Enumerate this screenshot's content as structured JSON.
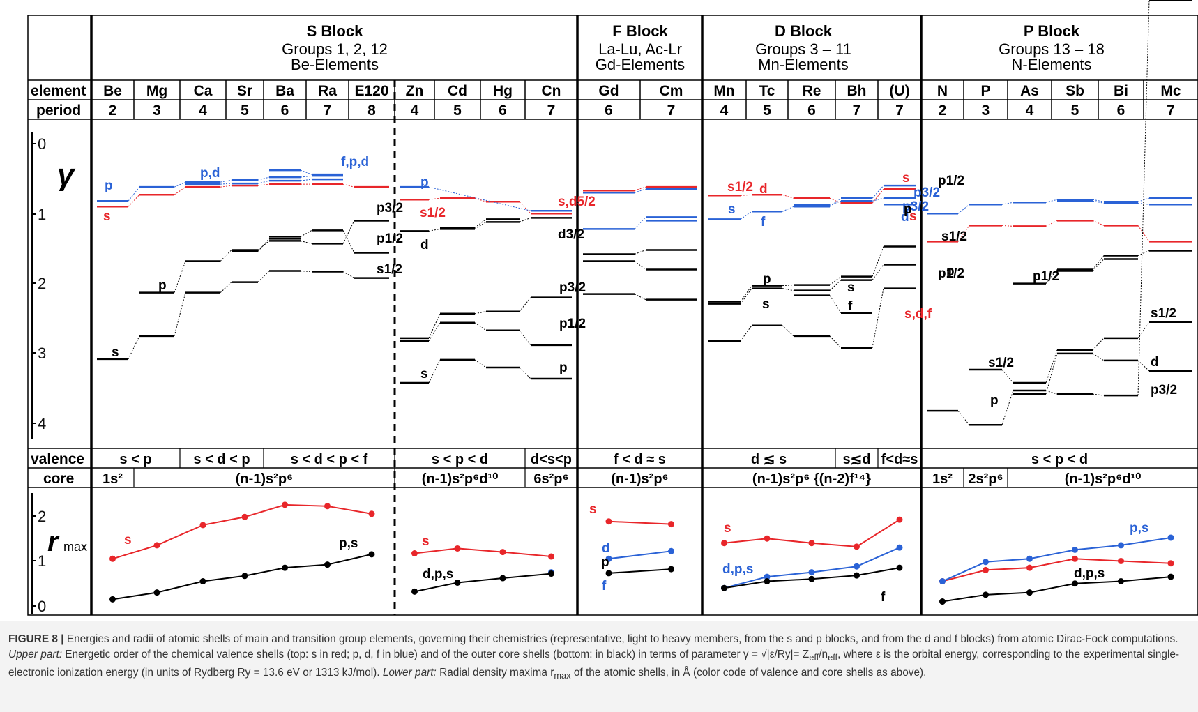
{
  "blocks": {
    "s": {
      "title": "S Block",
      "sub1": "Groups 1, 2, 12",
      "sub2": "Be-Elements"
    },
    "f": {
      "title": "F Block",
      "sub1": "La-Lu, Ac-Lr",
      "sub2": "Gd-Elements"
    },
    "d": {
      "title": "D Block",
      "sub1": "Groups 3 – 11",
      "sub2": "Mn-Elements"
    },
    "p": {
      "title": "P Block",
      "sub1": "Groups 13 – 18",
      "sub2": "N-Elements"
    }
  },
  "row_labels": {
    "element": "element",
    "period": "period",
    "valence": "valence",
    "core": "core"
  },
  "elements": [
    "Be",
    "Mg",
    "Ca",
    "Sr",
    "Ba",
    "Ra",
    "E120",
    "Zn",
    "Cd",
    "Hg",
    "Cn",
    "Gd",
    "Cm",
    "Mn",
    "Tc",
    "Re",
    "Bh",
    "(U)",
    "N",
    "P",
    "As",
    "Sb",
    "Bi",
    "Mc"
  ],
  "periods": [
    "2",
    "3",
    "4",
    "5",
    "6",
    "7",
    "8",
    "4",
    "5",
    "6",
    "7",
    "6",
    "7",
    "4",
    "5",
    "6",
    "7",
    "7",
    "2",
    "3",
    "4",
    "5",
    "6",
    "7"
  ],
  "valence_cells": [
    "s < p",
    "s < d < p",
    "s < d < p < f",
    "s < p < d",
    "d<s<p",
    "f < d ≈ s",
    "d ≲ s",
    "s≲d",
    "f<d≈s",
    "s < p < d"
  ],
  "core_cells": {
    "c1": "1s",
    "c1_sup": "2",
    "c2": "(n-1)s²p⁶",
    "c3": "(n-1)s²p⁶d¹⁰",
    "c4": "6s²p⁶",
    "c5": "(n-1)s²p⁶",
    "c6": "(n-1)s²p⁶ {(n-2)f¹⁴}",
    "c7": "1s²",
    "c8": "2s²p⁶",
    "c9": "(n-1)s²p⁶d¹⁰"
  },
  "gamma_axis": {
    "label": "γ",
    "ticks": [
      "0",
      "1",
      "2",
      "3",
      "4"
    ]
  },
  "rmax_axis": {
    "label": "r",
    "label_sub": "max",
    "ticks": [
      "2",
      "1",
      "0"
    ]
  },
  "shell_labels": [
    "p",
    "s",
    "p,d",
    "f,p,d",
    "p3/2",
    "p1/2",
    "s1/2",
    "p",
    "s",
    "p",
    "s1/2",
    "d",
    "s,d5/2",
    "d3/2",
    "p3/2",
    "p1/2",
    "p",
    "s",
    "s1/2",
    "s",
    "d",
    "f",
    "p",
    "s",
    "s",
    "d",
    "s,d,f",
    "p3/2",
    "p1/2",
    "s1/2",
    "p",
    "s",
    "f",
    "p",
    "s",
    "p3/2",
    "p1/2",
    "s1/2",
    "d",
    "p3/2",
    "p1/2",
    "s1/2",
    "p",
    "s"
  ],
  "rmax_labels": [
    "s",
    "p,s",
    "s",
    "d,p,s",
    "s",
    "d",
    "p",
    "f",
    "s",
    "d,p,s",
    "f",
    "p,s",
    "d,p,s"
  ],
  "colors": {
    "s": "#e8262a",
    "pdf": "#2a62d6",
    "core": "#000000"
  },
  "chart_data": {
    "type": "line",
    "title": "",
    "rmax": {
      "ylim": [
        0,
        2.3
      ],
      "series": [
        {
          "name": "s",
          "color": "#e8262a",
          "points": [
            [
              "Be",
              1.05
            ],
            [
              "Mg",
              1.35
            ],
            [
              "Ca",
              1.8
            ],
            [
              "Sr",
              1.98
            ],
            [
              "Ba",
              2.25
            ],
            [
              "Ra",
              2.22
            ],
            [
              "E120",
              2.05
            ],
            [
              "Zn",
              1.17
            ],
            [
              "Cd",
              1.28
            ],
            [
              "Hg",
              1.2
            ],
            [
              "Cn",
              1.1
            ],
            [
              "Gd",
              1.88
            ],
            [
              "Cm",
              1.82
            ],
            [
              "Mn",
              1.4
            ],
            [
              "Tc",
              1.5
            ],
            [
              "Re",
              1.4
            ],
            [
              "Bh",
              1.32
            ],
            [
              "(U)",
              1.92
            ],
            [
              "N",
              0.55
            ],
            [
              "P",
              0.8
            ],
            [
              "As",
              0.85
            ],
            [
              "Sb",
              1.05
            ],
            [
              "Bi",
              1.0
            ],
            [
              "Mc",
              0.95
            ]
          ]
        },
        {
          "name": "p,d,f valence",
          "color": "#2a62d6",
          "points": [
            [
              "Cn",
              0.75
            ],
            [
              "Gd",
              1.05
            ],
            [
              "Cm",
              1.22
            ],
            [
              "Mn",
              0.4
            ],
            [
              "Tc",
              0.65
            ],
            [
              "Re",
              0.75
            ],
            [
              "Bh",
              0.88
            ],
            [
              "(U)",
              1.3
            ],
            [
              "N",
              0.55
            ],
            [
              "P",
              0.98
            ],
            [
              "As",
              1.05
            ],
            [
              "Sb",
              1.25
            ],
            [
              "Bi",
              1.35
            ],
            [
              "Mc",
              1.52
            ]
          ]
        },
        {
          "name": "core",
          "color": "#000000",
          "points": [
            [
              "Be",
              0.15
            ],
            [
              "Mg",
              0.3
            ],
            [
              "Ca",
              0.55
            ],
            [
              "Sr",
              0.67
            ],
            [
              "Ba",
              0.85
            ],
            [
              "Ra",
              0.92
            ],
            [
              "E120",
              1.15
            ],
            [
              "Zn",
              0.32
            ],
            [
              "Cd",
              0.52
            ],
            [
              "Hg",
              0.62
            ],
            [
              "Cn",
              0.72
            ],
            [
              "Gd",
              0.73
            ],
            [
              "Cm",
              0.82
            ],
            [
              "Mn",
              0.4
            ],
            [
              "Tc",
              0.55
            ],
            [
              "Re",
              0.6
            ],
            [
              "Bh",
              0.68
            ],
            [
              "(U)",
              0.85
            ],
            [
              "N",
              0.1
            ],
            [
              "P",
              0.25
            ],
            [
              "As",
              0.3
            ],
            [
              "Sb",
              0.5
            ],
            [
              "Bi",
              0.55
            ],
            [
              "Mc",
              0.65
            ]
          ]
        }
      ]
    },
    "gamma": {
      "ylim": [
        0,
        4.1
      ],
      "note": "levels read from left axis"
    }
  },
  "caption": {
    "lead": "FIGURE 8 |",
    "t1": " Energies and radii of atomic shells of main and transition group elements, governing their chemistries (representative, light to heavy members, from the s and p blocks, and from the d and f blocks) from atomic Dirac-Fock computations. ",
    "upper": "Upper part:",
    "t2": " Energetic order of the chemical valence shells (top: s in red; p, d, f in blue) and of the outer core shells (bottom: in black) in terms of parameter γ = √|ε/Ry|= Z",
    "t2b": "eff",
    "t2c": "/n",
    "t2d": "eff",
    "t3": ", where ε is the orbital energy, corresponding to the experimental single-electronic ionization energy (in units of Rydberg Ry = 13.6 eV or 1313 kJ/mol). ",
    "lower": "Lower part:",
    "t4": " Radial density maxima r",
    "t4b": "max",
    "t5": " of the atomic shells, in Å (color code of valence and core shells as above)."
  }
}
